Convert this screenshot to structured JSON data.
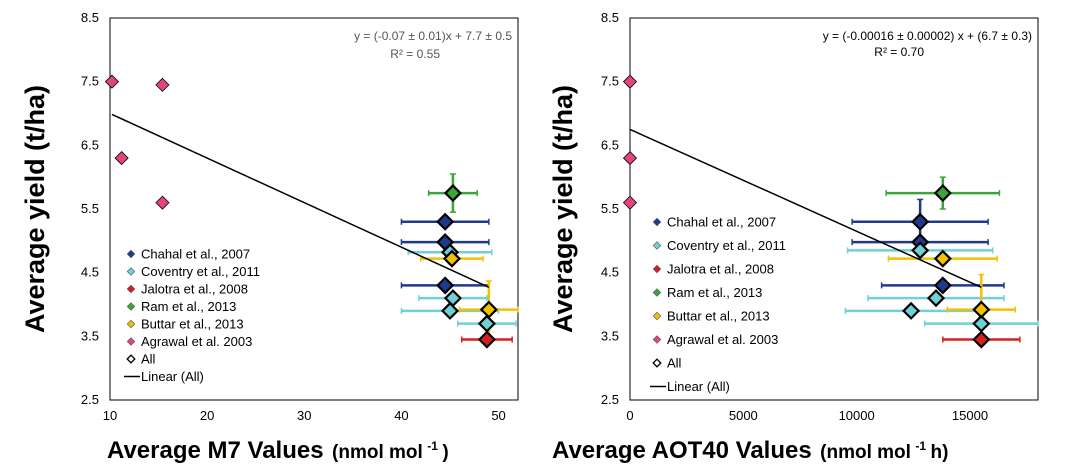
{
  "chart_data": [
    {
      "type": "scatter",
      "title": "",
      "xlabel": "Average M7 Values",
      "xunit": "(nmol mol",
      "xunit_sup": "-1",
      "xunit_close": ")",
      "ylabel": "Average yield (t/ha)",
      "xlim": [
        10,
        52
      ],
      "ylim": [
        2.5,
        8.5
      ],
      "xticks": [
        "10",
        "20",
        "30",
        "40",
        "50"
      ],
      "yticks": [
        "2.5",
        "3.5",
        "4.5",
        "5.5",
        "6.5",
        "7.5",
        "8.5"
      ],
      "equation": "y = (-0.07 ± 0.01)x + 7.7 ± 0.5",
      "r2": "R² = 0.55",
      "legend_position": "bottom-left",
      "trendline": {
        "x0": 10.2,
        "x1": 49,
        "slope": -0.07,
        "intercept": 7.7
      },
      "series": [
        {
          "name": "Chahal et al., 2007",
          "color": "#1f3a8a",
          "points": [
            {
              "x": 44.5,
              "y": 5.3,
              "xerr": 4.5,
              "yerr": 0
            },
            {
              "x": 44.5,
              "y": 4.98,
              "xerr": 4.5,
              "yerr": 0
            },
            {
              "x": 44.5,
              "y": 4.3,
              "xerr": 4.5,
              "yerr": 0
            }
          ]
        },
        {
          "name": "Coventry et al., 2011",
          "color": "#6fd0d6",
          "points": [
            {
              "x": 45.0,
              "y": 4.82,
              "xerr": 4.3,
              "yerr": 0
            },
            {
              "x": 45.3,
              "y": 4.1,
              "xerr": 3.5,
              "yerr": 0
            },
            {
              "x": 45.0,
              "y": 3.9,
              "xerr": 5.0,
              "yerr": 0
            },
            {
              "x": 48.8,
              "y": 3.7,
              "xerr": 3.0,
              "yerr": 0
            }
          ]
        },
        {
          "name": "Jalotra et al., 2008",
          "color": "#d62020",
          "points": [
            {
              "x": 48.8,
              "y": 3.45,
              "xerr": 2.6,
              "yerr": 0
            }
          ]
        },
        {
          "name": "Ram et al., 2013",
          "color": "#3aa63a",
          "points": [
            {
              "x": 45.3,
              "y": 5.75,
              "xerr": 2.5,
              "yerr": 0.3
            }
          ]
        },
        {
          "name": "Buttar et al., 2013",
          "color": "#f2c100",
          "points": [
            {
              "x": 45.2,
              "y": 4.72,
              "xerr": 3.2,
              "yerr": 0
            },
            {
              "x": 49.0,
              "y": 3.92,
              "xerr": 3.0,
              "yerr": 0.45
            }
          ]
        },
        {
          "name": "Agrawal et al. 2003",
          "color": "#e0457b",
          "points": [
            {
              "x": 10.2,
              "y": 7.5,
              "xerr": 0,
              "yerr": 0
            },
            {
              "x": 15.4,
              "y": 7.45,
              "xerr": 0,
              "yerr": 0
            },
            {
              "x": 11.2,
              "y": 6.3,
              "xerr": 0,
              "yerr": 0
            },
            {
              "x": 15.4,
              "y": 5.6,
              "xerr": 0,
              "yerr": 0
            }
          ]
        },
        {
          "name": "All",
          "color": "#000000",
          "points": [
            {
              "x": 44.5,
              "y": 5.3
            },
            {
              "x": 44.5,
              "y": 4.98
            },
            {
              "x": 44.5,
              "y": 4.3
            },
            {
              "x": 45.0,
              "y": 4.82
            },
            {
              "x": 45.3,
              "y": 4.1
            },
            {
              "x": 45.0,
              "y": 3.9
            },
            {
              "x": 48.8,
              "y": 3.7
            },
            {
              "x": 48.8,
              "y": 3.45
            },
            {
              "x": 45.3,
              "y": 5.75
            },
            {
              "x": 45.2,
              "y": 4.72
            },
            {
              "x": 49.0,
              "y": 3.92
            }
          ]
        },
        {
          "name": "Linear (All)",
          "color": "#000000",
          "points": []
        }
      ]
    },
    {
      "type": "scatter",
      "title": "",
      "xlabel": "Average AOT40 Values",
      "xunit": "(nmol mol",
      "xunit_sup": "-1",
      "xunit_close": " h)",
      "ylabel": "Average yield (t/ha)",
      "xlim": [
        0,
        18000
      ],
      "ylim": [
        2.5,
        8.5
      ],
      "xticks": [
        "0",
        "5000",
        "10000",
        "15000"
      ],
      "yticks": [
        "2.5",
        "3.5",
        "4.5",
        "5.5",
        "6.5",
        "7.5",
        "8.5"
      ],
      "equation": "y = (-0.00016 ±  0.00002) x + (6.7 ± 0.3)",
      "r2": "R² = 0.70",
      "legend_position": "bottom-left",
      "trendline": {
        "x0": 0,
        "x1": 15500,
        "slope": -0.00016,
        "intercept": 6.75
      },
      "series": [
        {
          "name": "Chahal et al., 2007",
          "color": "#1f3a8a",
          "points": [
            {
              "x": 12800,
              "y": 5.3,
              "xerr": 3000,
              "yerr": 0.35
            },
            {
              "x": 12800,
              "y": 4.98,
              "xerr": 3000,
              "yerr": 0
            },
            {
              "x": 13800,
              "y": 4.3,
              "xerr": 2700,
              "yerr": 0
            }
          ]
        },
        {
          "name": "Coventry et al., 2011",
          "color": "#6fd0d6",
          "points": [
            {
              "x": 12800,
              "y": 4.85,
              "xerr": 3200,
              "yerr": 0
            },
            {
              "x": 13500,
              "y": 4.1,
              "xerr": 3000,
              "yerr": 0
            },
            {
              "x": 12400,
              "y": 3.9,
              "xerr": 2900,
              "yerr": 0
            },
            {
              "x": 15500,
              "y": 3.7,
              "xerr": 2500,
              "yerr": 0
            }
          ]
        },
        {
          "name": "Jalotra et al., 2008",
          "color": "#d62020",
          "points": [
            {
              "x": 15500,
              "y": 3.45,
              "xerr": 1700,
              "yerr": 0
            }
          ]
        },
        {
          "name": "Ram et al., 2013",
          "color": "#3aa63a",
          "points": [
            {
              "x": 13800,
              "y": 5.75,
              "xerr": 2500,
              "yerr": 0.25
            }
          ]
        },
        {
          "name": "Buttar et al., 2013",
          "color": "#f2c100",
          "points": [
            {
              "x": 13800,
              "y": 4.72,
              "xerr": 2400,
              "yerr": 0
            },
            {
              "x": 15500,
              "y": 3.92,
              "xerr": 1500,
              "yerr": 0.55
            }
          ]
        },
        {
          "name": "Agrawal et al. 2003",
          "color": "#e0457b",
          "points": [
            {
              "x": 0,
              "y": 7.5,
              "xerr": 0,
              "yerr": 0
            },
            {
              "x": 0,
              "y": 6.3,
              "xerr": 0,
              "yerr": 0
            },
            {
              "x": 0,
              "y": 5.6,
              "xerr": 0,
              "yerr": 0
            }
          ]
        },
        {
          "name": "All",
          "color": "#000000",
          "points": [
            {
              "x": 12800,
              "y": 5.3
            },
            {
              "x": 12800,
              "y": 4.98
            },
            {
              "x": 13800,
              "y": 4.3
            },
            {
              "x": 12800,
              "y": 4.85
            },
            {
              "x": 13500,
              "y": 4.1
            },
            {
              "x": 12400,
              "y": 3.9
            },
            {
              "x": 15500,
              "y": 3.7
            },
            {
              "x": 15500,
              "y": 3.45
            },
            {
              "x": 13800,
              "y": 5.75
            },
            {
              "x": 13800,
              "y": 4.72
            },
            {
              "x": 15500,
              "y": 3.92
            }
          ]
        },
        {
          "name": "Linear (All)",
          "color": "#000000",
          "points": []
        }
      ]
    }
  ]
}
